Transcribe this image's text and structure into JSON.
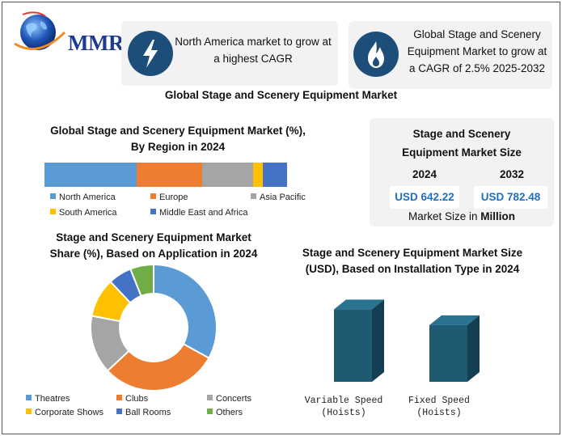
{
  "logo": {
    "text": "MMR"
  },
  "highlights": [
    {
      "icon": "lightning-icon",
      "text_line1": "North America market to grow at",
      "text_line2": "a highest CAGR"
    },
    {
      "icon": "flame-icon",
      "text_line1": "Global Stage and Scenery",
      "text_line2": "Equipment Market to grow at",
      "text_line3": "a CAGR of 2.5% 2025-2032"
    }
  ],
  "main_title": "Global Stage and Scenery Equipment Market",
  "market_size": {
    "title_line1": "Stage and Scenery",
    "title_line2": "Equipment Market Size",
    "years": [
      "2024",
      "2032"
    ],
    "values": [
      "USD 642.22",
      "USD 782.48"
    ],
    "unit_prefix": "Market Size in ",
    "unit_bold": "Million"
  },
  "chart_data": [
    {
      "type": "bar",
      "orientation": "horizontal-stacked",
      "title_line1": "Global Stage and Scenery Equipment Market (%),",
      "title_line2": "By Region in 2024",
      "categories": [
        "North America",
        "Europe",
        "Asia Pacific",
        "South America",
        "Middle East and Africa"
      ],
      "values": [
        38,
        27,
        21,
        4,
        10
      ],
      "colors": [
        "#5b9bd5",
        "#ed7d31",
        "#a5a5a5",
        "#ffc000",
        "#4472c4"
      ],
      "legend_position": "bottom"
    },
    {
      "type": "pie",
      "style": "donut",
      "title_line1": "Stage and Scenery Equipment Market",
      "title_line2": "Share (%), Based on Application in 2024",
      "categories": [
        "Theatres",
        "Clubs",
        "Concerts",
        "Corporate Shows",
        "Ball Rooms",
        "Others"
      ],
      "values": [
        33,
        30,
        15,
        10,
        6,
        6
      ],
      "colors": [
        "#5b9bd5",
        "#ed7d31",
        "#a5a5a5",
        "#ffc000",
        "#4472c4",
        "#70ad47"
      ],
      "legend_position": "bottom"
    },
    {
      "type": "bar",
      "style": "3d-column",
      "title_line1": "Stage and Scenery Equipment Market Size",
      "title_line2": "(USD), Based on Installation Type in 2024",
      "categories": [
        {
          "line1": "Variable Speed",
          "line2": "(Hoists)"
        },
        {
          "line1": "Fixed Speed",
          "line2": "(Hoists)"
        }
      ],
      "values": [
        60,
        47
      ],
      "color": "#1f5a73",
      "grid": false
    }
  ]
}
